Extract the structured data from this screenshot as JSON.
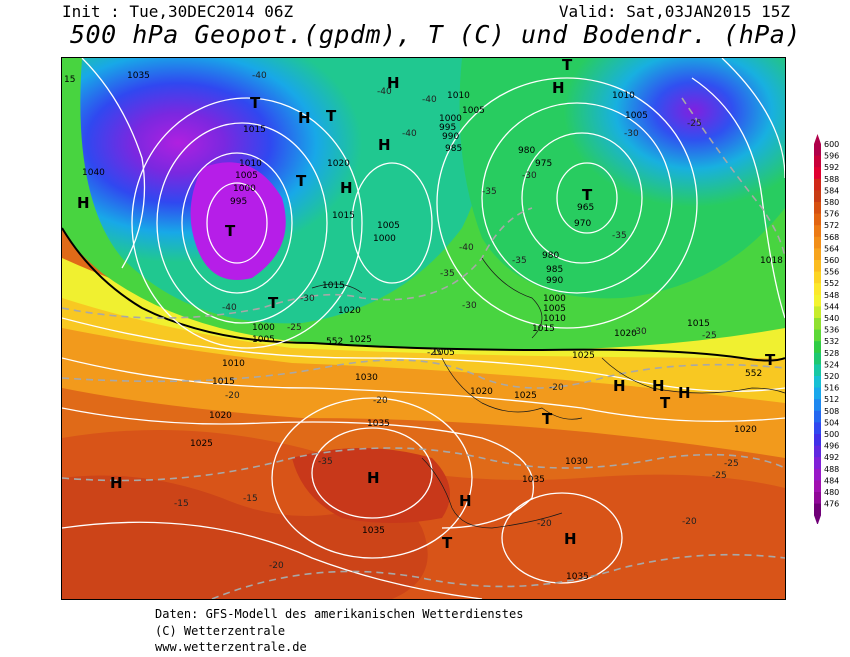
{
  "header": {
    "init": "Init : Tue,30DEC2014 06Z",
    "valid": "Valid: Sat,03JAN2015 15Z",
    "title": "500 hPa Geopot.(gpdm), T (C) und Bodendr. (hPa)"
  },
  "legend": {
    "levels": [
      "600",
      "596",
      "592",
      "588",
      "584",
      "580",
      "576",
      "572",
      "568",
      "564",
      "560",
      "556",
      "552",
      "548",
      "544",
      "540",
      "536",
      "532",
      "528",
      "524",
      "520",
      "516",
      "512",
      "508",
      "504",
      "500",
      "496",
      "492",
      "488",
      "484",
      "480",
      "476"
    ],
    "colors": [
      "#b0004a",
      "#c8003a",
      "#e00030",
      "#d02818",
      "#c83c14",
      "#d65010",
      "#e26410",
      "#ec7a14",
      "#f28e18",
      "#f7a41e",
      "#fbbc20",
      "#fcd424",
      "#fce82c",
      "#f4f430",
      "#c8ec2c",
      "#90e030",
      "#5cd838",
      "#30cc44",
      "#1ec870",
      "#18c8a4",
      "#18c0d4",
      "#1aa8ec",
      "#1e88f0",
      "#2468f0",
      "#3048f0",
      "#4030e8",
      "#6028e0",
      "#8020d8",
      "#9818c8",
      "#a010b0",
      "#900898",
      "#700078"
    ]
  },
  "map": {
    "pressure_labels": [
      "1035",
      "1020",
      "1010",
      "1005",
      "1000",
      "995",
      "990",
      "985",
      "980",
      "975",
      "970",
      "965",
      "1015",
      "1025",
      "1030",
      "1040",
      "1018",
      "15"
    ],
    "temperature_labels": [
      "-40",
      "-35",
      "-30",
      "-25",
      "-20",
      "-15"
    ],
    "contour_label_552": "552",
    "highs": [
      "H",
      "H",
      "H",
      "H",
      "H",
      "H",
      "H",
      "H",
      "H",
      "H",
      "H",
      "H",
      "H"
    ],
    "lows": [
      "T",
      "T",
      "T",
      "T",
      "T",
      "T",
      "T",
      "T",
      "T",
      "T",
      "T"
    ]
  },
  "footer": {
    "source": "Daten: GFS-Modell des amerikanischen Wetterdienstes",
    "copyright": "(C) Wetterzentrale",
    "url": "www.wetterzentrale.de"
  }
}
